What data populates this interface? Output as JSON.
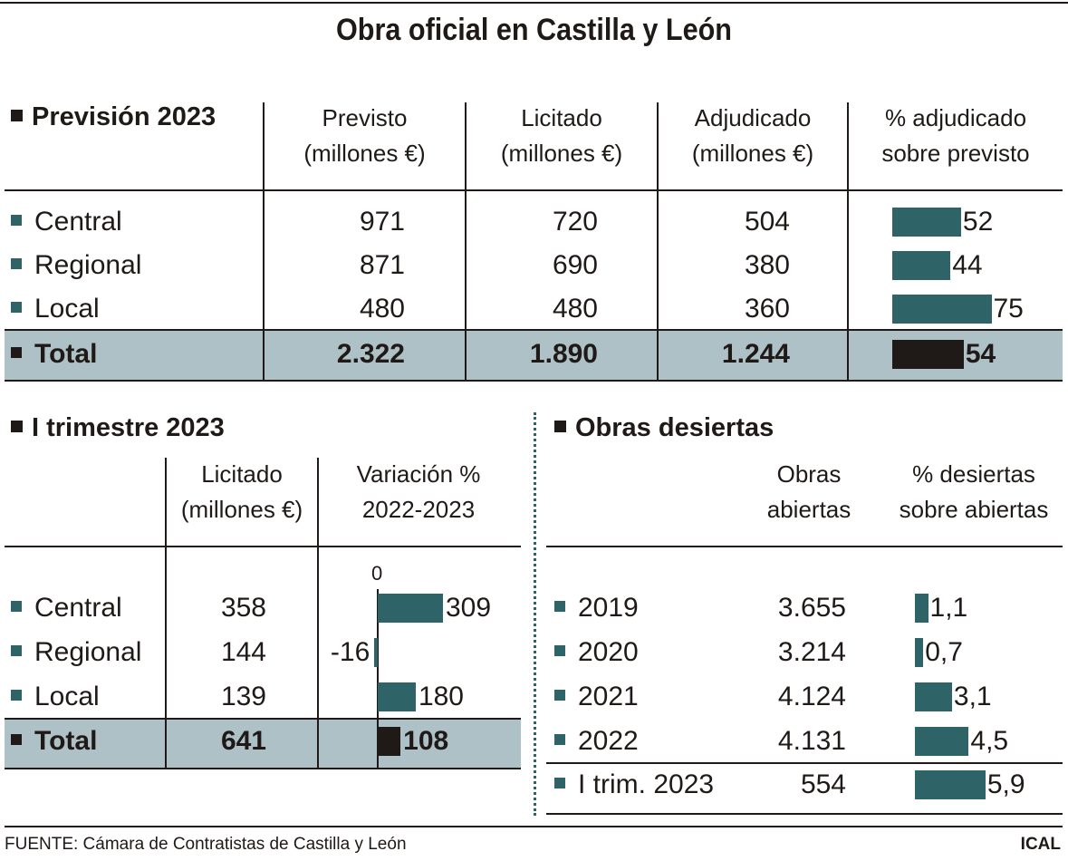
{
  "title": "Obra oficial en Castilla y León",
  "colors": {
    "bar": "#2e6468",
    "total_bar": "#1f1a17",
    "total_band": "#adc1c7",
    "text": "#1f1a17"
  },
  "chart_data": [
    {
      "type": "table",
      "title": "Previsión 2023",
      "columns": [
        "Previsto\n(millones €)",
        "Licitado\n(millones €)",
        "Adjudicado\n(millones €)",
        "% adjudicado\nsobre previsto"
      ],
      "col_lines": [
        [
          "Previsto",
          "(millones €)"
        ],
        [
          "Licitado",
          "(millones €)"
        ],
        [
          "Adjudicado",
          "(millones €)"
        ],
        [
          "% adjudicado",
          "sobre previsto"
        ]
      ],
      "rows": [
        {
          "label": "Central",
          "values": [
            "971",
            "720",
            "504"
          ],
          "pct": 52,
          "pct_label": "52"
        },
        {
          "label": "Regional",
          "values": [
            "871",
            "690",
            "380"
          ],
          "pct": 44,
          "pct_label": "44"
        },
        {
          "label": "Local",
          "values": [
            "480",
            "480",
            "360"
          ],
          "pct": 75,
          "pct_label": "75"
        },
        {
          "label": "Total",
          "values": [
            "2.322",
            "1.890",
            "1.244"
          ],
          "pct": 54,
          "pct_label": "54",
          "total": true
        }
      ]
    },
    {
      "type": "table",
      "title": "I trimestre 2023",
      "col_lines": [
        [
          "Licitado",
          "(millones €)"
        ],
        [
          "Variación %",
          "2022-2023"
        ]
      ],
      "zero_label": "0",
      "rows": [
        {
          "label": "Central",
          "value": "358",
          "var": 309,
          "var_label": "309"
        },
        {
          "label": "Regional",
          "value": "144",
          "var": -16,
          "var_label": "-16"
        },
        {
          "label": "Local",
          "value": "139",
          "var": 180,
          "var_label": "180"
        },
        {
          "label": "Total",
          "value": "641",
          "var": 108,
          "var_label": "108",
          "total": true
        }
      ]
    },
    {
      "type": "table",
      "title": "Obras desiertas",
      "col_lines": [
        [
          "Obras",
          "abiertas"
        ],
        [
          "% desiertas",
          "sobre abiertas"
        ]
      ],
      "rows": [
        {
          "label": "2019",
          "value": "3.655",
          "pct": 1.1,
          "pct_label": "1,1"
        },
        {
          "label": "2020",
          "value": "3.214",
          "pct": 0.7,
          "pct_label": "0,7"
        },
        {
          "label": "2021",
          "value": "4.124",
          "pct": 3.1,
          "pct_label": "3,1"
        },
        {
          "label": "2022",
          "value": "4.131",
          "pct": 4.5,
          "pct_label": "4,5"
        },
        {
          "label": "I trim. 2023",
          "value": "554",
          "pct": 5.9,
          "pct_label": "5,9"
        }
      ]
    }
  ],
  "footer": {
    "source": "FUENTE: Cámara de Contratistas de Castilla y León",
    "brand": "ICAL"
  }
}
